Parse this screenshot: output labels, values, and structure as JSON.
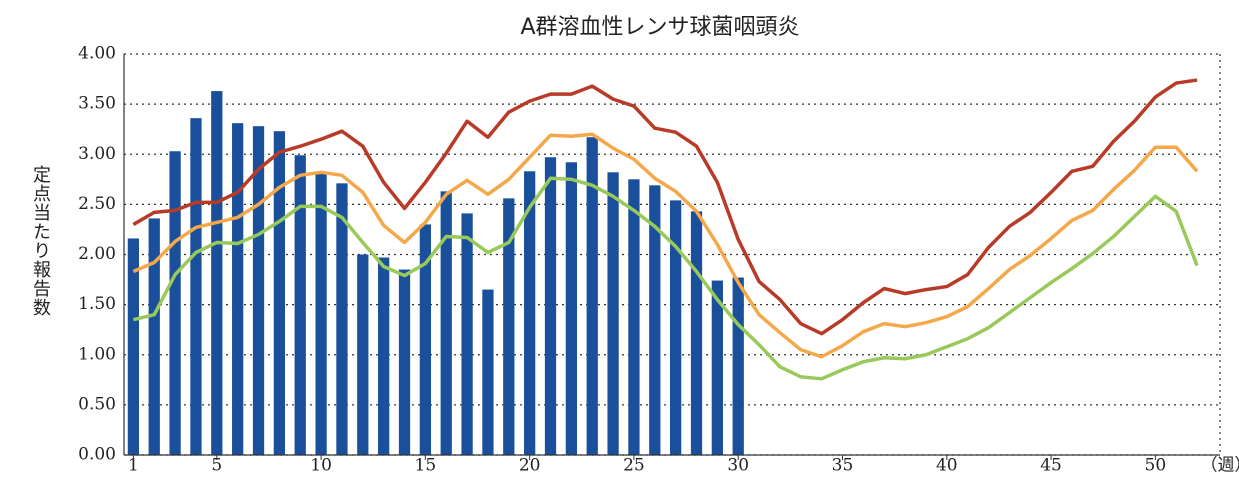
{
  "chart_data": {
    "type": "bar-line",
    "title": "A群溶血性レンサ球菌咽頭炎",
    "y_label": "定点当たり報告数",
    "x_unit": "（週）",
    "xlim": [
      0.55,
      53.1
    ],
    "xticks": [
      1,
      5,
      10,
      15,
      20,
      25,
      30,
      35,
      40,
      45,
      50
    ],
    "ylim": [
      0,
      4
    ],
    "yticks": [
      {
        "value": 0,
        "label": "0.00"
      },
      {
        "value": 0.5,
        "label": "0.50"
      },
      {
        "value": 1,
        "label": "1.00"
      },
      {
        "value": 1.5,
        "label": "1.50"
      },
      {
        "value": 2,
        "label": "2.00"
      },
      {
        "value": 2.5,
        "label": "2.50"
      },
      {
        "value": 3,
        "label": "3.00"
      },
      {
        "value": 3.5,
        "label": "3.50"
      },
      {
        "value": 4,
        "label": "4.00"
      }
    ],
    "grid": true,
    "series": [
      {
        "kind": "bar",
        "color": "#1a4f9c",
        "x": [
          1,
          2,
          3,
          4,
          5,
          6,
          7,
          8,
          9,
          10,
          11,
          12,
          13,
          14,
          15,
          16,
          17,
          18,
          19,
          20,
          21,
          22,
          23,
          24,
          25,
          26,
          27,
          28,
          29,
          30
        ],
        "values": [
          2.16,
          2.36,
          3.03,
          3.36,
          3.63,
          3.31,
          3.28,
          3.23,
          2.99,
          2.82,
          2.71,
          2.0,
          1.97,
          1.85,
          2.3,
          2.63,
          2.41,
          1.65,
          2.56,
          2.83,
          2.97,
          2.92,
          3.17,
          2.82,
          2.75,
          2.69,
          2.54,
          2.43,
          1.74,
          1.77
        ]
      },
      {
        "kind": "line",
        "color": "#b83a27",
        "x": [
          1,
          2,
          3,
          4,
          5,
          6,
          7,
          8,
          9,
          10,
          11,
          12,
          13,
          14,
          15,
          16,
          17,
          18,
          19,
          20,
          21,
          22,
          23,
          24,
          25,
          26,
          27,
          28,
          29,
          30,
          31,
          32,
          33,
          34,
          35,
          36,
          37,
          38,
          39,
          40,
          41,
          42,
          43,
          44,
          45,
          46,
          47,
          48,
          49,
          50,
          51,
          52
        ],
        "values": [
          2.3,
          2.42,
          2.44,
          2.52,
          2.52,
          2.62,
          2.85,
          3.02,
          3.08,
          3.15,
          3.23,
          3.08,
          2.72,
          2.46,
          2.72,
          3.01,
          3.33,
          3.17,
          3.42,
          3.53,
          3.6,
          3.6,
          3.68,
          3.55,
          3.48,
          3.26,
          3.22,
          3.08,
          2.72,
          2.15,
          1.73,
          1.55,
          1.31,
          1.21,
          1.35,
          1.52,
          1.66,
          1.61,
          1.65,
          1.68,
          1.8,
          2.07,
          2.28,
          2.42,
          2.62,
          2.83,
          2.88,
          3.13,
          3.33,
          3.57,
          3.71,
          3.74
        ]
      },
      {
        "kind": "line",
        "color": "#f4a84a",
        "x": [
          1,
          2,
          3,
          4,
          5,
          6,
          7,
          8,
          9,
          10,
          11,
          12,
          13,
          14,
          15,
          16,
          17,
          18,
          19,
          20,
          21,
          22,
          23,
          24,
          25,
          26,
          27,
          28,
          29,
          30,
          31,
          32,
          33,
          34,
          35,
          36,
          37,
          38,
          39,
          40,
          41,
          42,
          43,
          44,
          45,
          46,
          47,
          48,
          49,
          50,
          51,
          52
        ],
        "values": [
          1.83,
          1.92,
          2.13,
          2.27,
          2.32,
          2.37,
          2.5,
          2.67,
          2.79,
          2.82,
          2.79,
          2.62,
          2.29,
          2.12,
          2.32,
          2.6,
          2.74,
          2.6,
          2.75,
          2.97,
          3.19,
          3.18,
          3.2,
          3.06,
          2.95,
          2.76,
          2.63,
          2.43,
          2.1,
          1.72,
          1.4,
          1.22,
          1.05,
          0.98,
          1.09,
          1.23,
          1.31,
          1.28,
          1.32,
          1.38,
          1.48,
          1.66,
          1.85,
          1.99,
          2.16,
          2.34,
          2.44,
          2.65,
          2.84,
          3.07,
          3.07,
          2.83
        ]
      },
      {
        "kind": "line",
        "color": "#99c95a",
        "x": [
          1,
          2,
          3,
          4,
          5,
          6,
          7,
          8,
          9,
          10,
          11,
          12,
          13,
          14,
          15,
          16,
          17,
          18,
          19,
          20,
          21,
          22,
          23,
          24,
          25,
          26,
          27,
          28,
          29,
          30,
          31,
          32,
          33,
          34,
          35,
          36,
          37,
          38,
          39,
          40,
          41,
          42,
          43,
          44,
          45,
          46,
          47,
          48,
          49,
          50,
          51,
          52
        ],
        "values": [
          1.35,
          1.4,
          1.8,
          2.02,
          2.12,
          2.11,
          2.2,
          2.33,
          2.48,
          2.48,
          2.37,
          2.12,
          1.88,
          1.79,
          1.91,
          2.18,
          2.17,
          2.02,
          2.12,
          2.47,
          2.76,
          2.75,
          2.69,
          2.58,
          2.44,
          2.28,
          2.08,
          1.83,
          1.55,
          1.3,
          1.1,
          0.88,
          0.78,
          0.76,
          0.85,
          0.93,
          0.97,
          0.96,
          1.0,
          1.08,
          1.16,
          1.27,
          1.42,
          1.57,
          1.72,
          1.86,
          2.01,
          2.18,
          2.38,
          2.58,
          2.43,
          1.89
        ]
      }
    ]
  }
}
